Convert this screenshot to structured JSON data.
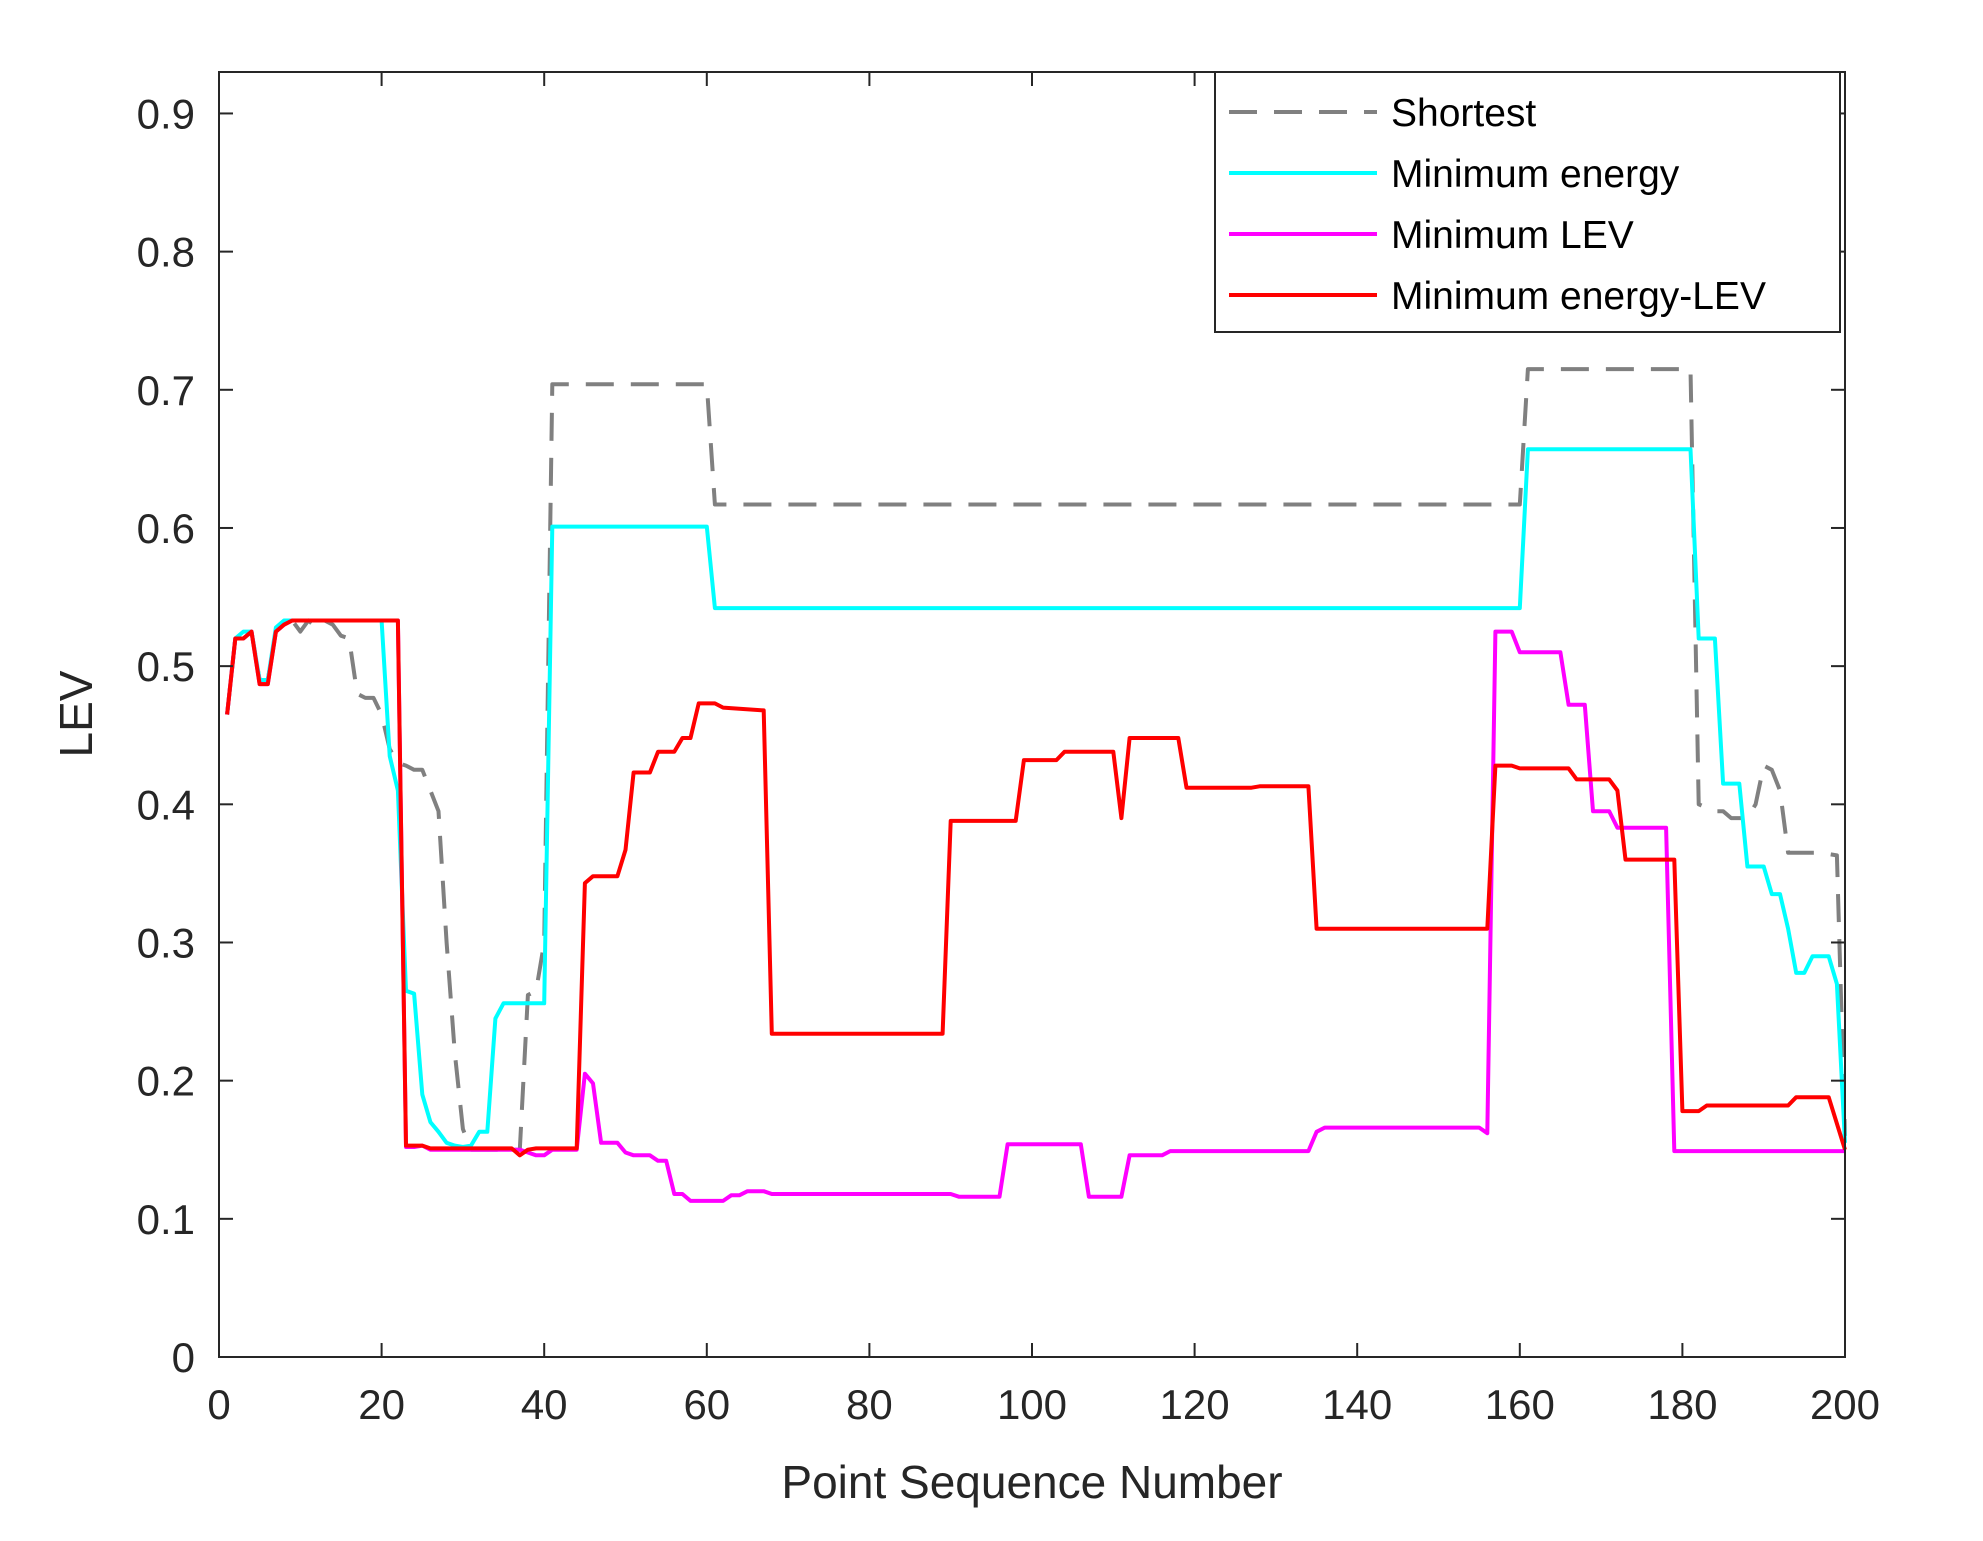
{
  "chart_data": {
    "type": "line",
    "title": "",
    "xlabel": "Point Sequence Number",
    "ylabel": "LEV",
    "xlim": [
      0,
      200
    ],
    "ylim": [
      0,
      0.93
    ],
    "xticks": [
      0,
      20,
      40,
      60,
      80,
      100,
      120,
      140,
      160,
      180,
      200
    ],
    "xtick_labels": [
      "0",
      "20",
      "40",
      "60",
      "80",
      "100",
      "120",
      "140",
      "160",
      "180",
      "200"
    ],
    "yticks": [
      0,
      0.1,
      0.2,
      0.3,
      0.4,
      0.5,
      0.6,
      0.7,
      0.8,
      0.9
    ],
    "ytick_labels": [
      "0",
      "0.1",
      "0.2",
      "0.3",
      "0.4",
      "0.5",
      "0.6",
      "0.7",
      "0.8",
      "0.9"
    ],
    "grid": false,
    "legend_position": "top-right",
    "series": [
      {
        "name": "Shortest",
        "color": "#808080",
        "dash": "dashed",
        "points": [
          [
            1,
            0.465
          ],
          [
            2,
            0.52
          ],
          [
            3,
            0.52
          ],
          [
            4,
            0.525
          ],
          [
            5,
            0.49
          ],
          [
            6,
            0.49
          ],
          [
            7,
            0.525
          ],
          [
            8,
            0.53
          ],
          [
            9,
            0.533
          ],
          [
            10,
            0.525
          ],
          [
            11,
            0.533
          ],
          [
            12,
            0.528
          ],
          [
            13,
            0.533
          ],
          [
            14,
            0.53
          ],
          [
            15,
            0.522
          ],
          [
            16,
            0.52
          ],
          [
            17,
            0.48
          ],
          [
            18,
            0.477
          ],
          [
            19,
            0.477
          ],
          [
            20,
            0.465
          ],
          [
            21,
            0.44
          ],
          [
            22,
            0.43
          ],
          [
            23,
            0.428
          ],
          [
            24,
            0.425
          ],
          [
            25,
            0.425
          ],
          [
            26,
            0.41
          ],
          [
            27,
            0.395
          ],
          [
            28,
            0.3
          ],
          [
            29,
            0.22
          ],
          [
            30,
            0.165
          ],
          [
            31,
            0.15
          ],
          [
            32,
            0.15
          ],
          [
            33,
            0.15
          ],
          [
            34,
            0.15
          ],
          [
            35,
            0.15
          ],
          [
            36,
            0.15
          ],
          [
            37,
            0.15
          ],
          [
            38,
            0.262
          ],
          [
            39,
            0.265
          ],
          [
            40,
            0.3
          ],
          [
            41,
            0.704
          ],
          [
            45,
            0.704
          ],
          [
            60,
            0.704
          ],
          [
            61,
            0.617
          ],
          [
            70,
            0.617
          ],
          [
            100,
            0.617
          ],
          [
            140,
            0.617
          ],
          [
            160,
            0.617
          ],
          [
            161,
            0.715
          ],
          [
            170,
            0.715
          ],
          [
            181,
            0.715
          ],
          [
            182,
            0.4
          ],
          [
            184,
            0.395
          ],
          [
            185,
            0.395
          ],
          [
            186,
            0.39
          ],
          [
            188,
            0.39
          ],
          [
            189,
            0.4
          ],
          [
            190,
            0.428
          ],
          [
            191,
            0.425
          ],
          [
            192,
            0.41
          ],
          [
            193,
            0.365
          ],
          [
            197,
            0.365
          ],
          [
            199,
            0.363
          ],
          [
            200,
            0.16
          ]
        ]
      },
      {
        "name": "Minimum energy",
        "color": "#00ffff",
        "dash": "solid",
        "points": [
          [
            1,
            0.465
          ],
          [
            2,
            0.52
          ],
          [
            3,
            0.525
          ],
          [
            4,
            0.525
          ],
          [
            5,
            0.49
          ],
          [
            6,
            0.49
          ],
          [
            7,
            0.528
          ],
          [
            8,
            0.533
          ],
          [
            20,
            0.533
          ],
          [
            21,
            0.435
          ],
          [
            22,
            0.41
          ],
          [
            23,
            0.265
          ],
          [
            24,
            0.263
          ],
          [
            25,
            0.19
          ],
          [
            26,
            0.17
          ],
          [
            27,
            0.163
          ],
          [
            28,
            0.155
          ],
          [
            29,
            0.153
          ],
          [
            30,
            0.152
          ],
          [
            31,
            0.153
          ],
          [
            32,
            0.163
          ],
          [
            33,
            0.163
          ],
          [
            34,
            0.245
          ],
          [
            35,
            0.256
          ],
          [
            40,
            0.256
          ],
          [
            41,
            0.601
          ],
          [
            60,
            0.601
          ],
          [
            61,
            0.542
          ],
          [
            100,
            0.542
          ],
          [
            160,
            0.542
          ],
          [
            161,
            0.657
          ],
          [
            181,
            0.657
          ],
          [
            182,
            0.52
          ],
          [
            184,
            0.52
          ],
          [
            185,
            0.415
          ],
          [
            187,
            0.415
          ],
          [
            188,
            0.355
          ],
          [
            190,
            0.355
          ],
          [
            191,
            0.335
          ],
          [
            192,
            0.335
          ],
          [
            193,
            0.31
          ],
          [
            194,
            0.278
          ],
          [
            195,
            0.278
          ],
          [
            196,
            0.29
          ],
          [
            198,
            0.29
          ],
          [
            199,
            0.27
          ],
          [
            200,
            0.155
          ]
        ]
      },
      {
        "name": "Minimum LEV",
        "color": "#ff00ff",
        "dash": "solid",
        "points": [
          [
            1,
            0.465
          ],
          [
            2,
            0.52
          ],
          [
            3,
            0.52
          ],
          [
            4,
            0.525
          ],
          [
            5,
            0.487
          ],
          [
            6,
            0.487
          ],
          [
            7,
            0.525
          ],
          [
            8,
            0.53
          ],
          [
            9,
            0.533
          ],
          [
            22,
            0.533
          ],
          [
            23,
            0.152
          ],
          [
            24,
            0.152
          ],
          [
            25,
            0.153
          ],
          [
            26,
            0.15
          ],
          [
            37,
            0.15
          ],
          [
            38,
            0.148
          ],
          [
            39,
            0.146
          ],
          [
            40,
            0.146
          ],
          [
            41,
            0.15
          ],
          [
            43,
            0.15
          ],
          [
            44,
            0.15
          ],
          [
            45,
            0.205
          ],
          [
            46,
            0.198
          ],
          [
            47,
            0.155
          ],
          [
            49,
            0.155
          ],
          [
            50,
            0.148
          ],
          [
            51,
            0.146
          ],
          [
            52,
            0.146
          ],
          [
            53,
            0.146
          ],
          [
            54,
            0.142
          ],
          [
            55,
            0.142
          ],
          [
            56,
            0.118
          ],
          [
            57,
            0.118
          ],
          [
            58,
            0.113
          ],
          [
            62,
            0.113
          ],
          [
            63,
            0.117
          ],
          [
            64,
            0.117
          ],
          [
            65,
            0.12
          ],
          [
            67,
            0.12
          ],
          [
            68,
            0.118
          ],
          [
            90,
            0.118
          ],
          [
            91,
            0.116
          ],
          [
            96,
            0.116
          ],
          [
            97,
            0.154
          ],
          [
            106,
            0.154
          ],
          [
            107,
            0.116
          ],
          [
            111,
            0.116
          ],
          [
            112,
            0.146
          ],
          [
            116,
            0.146
          ],
          [
            117,
            0.149
          ],
          [
            134,
            0.149
          ],
          [
            135,
            0.163
          ],
          [
            136,
            0.166
          ],
          [
            155,
            0.166
          ],
          [
            156,
            0.162
          ],
          [
            157,
            0.525
          ],
          [
            159,
            0.525
          ],
          [
            160,
            0.51
          ],
          [
            165,
            0.51
          ],
          [
            166,
            0.472
          ],
          [
            168,
            0.472
          ],
          [
            169,
            0.395
          ],
          [
            171,
            0.395
          ],
          [
            172,
            0.383
          ],
          [
            178,
            0.383
          ],
          [
            179,
            0.149
          ],
          [
            200,
            0.149
          ]
        ]
      },
      {
        "name": "Minimum energy-LEV",
        "color": "#ff0000",
        "dash": "solid",
        "points": [
          [
            1,
            0.465
          ],
          [
            2,
            0.52
          ],
          [
            3,
            0.52
          ],
          [
            4,
            0.525
          ],
          [
            5,
            0.487
          ],
          [
            6,
            0.487
          ],
          [
            7,
            0.525
          ],
          [
            8,
            0.53
          ],
          [
            9,
            0.533
          ],
          [
            22,
            0.533
          ],
          [
            23,
            0.153
          ],
          [
            25,
            0.153
          ],
          [
            26,
            0.151
          ],
          [
            36,
            0.151
          ],
          [
            37,
            0.146
          ],
          [
            38,
            0.15
          ],
          [
            39,
            0.151
          ],
          [
            44,
            0.151
          ],
          [
            45,
            0.343
          ],
          [
            46,
            0.348
          ],
          [
            49,
            0.348
          ],
          [
            50,
            0.367
          ],
          [
            51,
            0.423
          ],
          [
            53,
            0.423
          ],
          [
            54,
            0.438
          ],
          [
            56,
            0.438
          ],
          [
            57,
            0.448
          ],
          [
            58,
            0.448
          ],
          [
            59,
            0.473
          ],
          [
            61,
            0.473
          ],
          [
            62,
            0.47
          ],
          [
            67,
            0.468
          ],
          [
            68,
            0.234
          ],
          [
            89,
            0.234
          ],
          [
            90,
            0.388
          ],
          [
            91,
            0.388
          ],
          [
            98,
            0.388
          ],
          [
            99,
            0.432
          ],
          [
            103,
            0.432
          ],
          [
            104,
            0.438
          ],
          [
            110,
            0.438
          ],
          [
            111,
            0.39
          ],
          [
            112,
            0.448
          ],
          [
            118,
            0.448
          ],
          [
            119,
            0.412
          ],
          [
            127,
            0.412
          ],
          [
            128,
            0.413
          ],
          [
            134,
            0.413
          ],
          [
            135,
            0.31
          ],
          [
            156,
            0.31
          ],
          [
            157,
            0.428
          ],
          [
            159,
            0.428
          ],
          [
            160,
            0.426
          ],
          [
            166,
            0.426
          ],
          [
            167,
            0.418
          ],
          [
            171,
            0.418
          ],
          [
            172,
            0.41
          ],
          [
            173,
            0.36
          ],
          [
            179,
            0.36
          ],
          [
            180,
            0.178
          ],
          [
            182,
            0.178
          ],
          [
            183,
            0.182
          ],
          [
            193,
            0.182
          ],
          [
            194,
            0.188
          ],
          [
            197,
            0.188
          ],
          [
            198,
            0.188
          ],
          [
            200,
            0.15
          ]
        ]
      }
    ]
  }
}
